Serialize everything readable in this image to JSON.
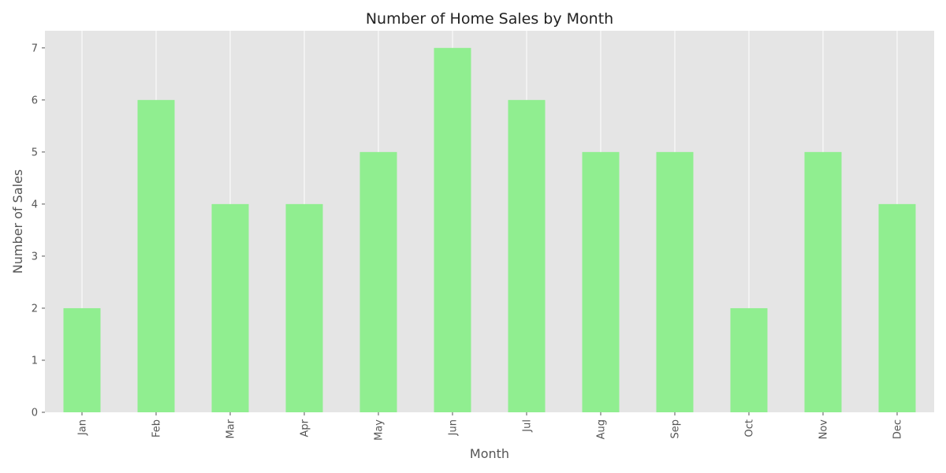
{
  "chart_data": {
    "type": "bar",
    "title": "Number of Home Sales by Month",
    "xlabel": "Month",
    "ylabel": "Number of Sales",
    "categories": [
      "Jan",
      "Feb",
      "Mar",
      "Apr",
      "May",
      "Jun",
      "Jul",
      "Aug",
      "Sep",
      "Oct",
      "Nov",
      "Dec"
    ],
    "values": [
      2,
      6,
      4,
      4,
      5,
      7,
      6,
      5,
      5,
      2,
      5,
      4
    ],
    "ylim": [
      0,
      7.33
    ],
    "yticks": [
      "0",
      "1",
      "2",
      "3",
      "4",
      "5",
      "6",
      "7"
    ],
    "grid": true,
    "legend": "none",
    "colors": {
      "bar": "#90ee90",
      "plot_background": "#e5e5e5",
      "grid": "#ffffff",
      "tick_text": "#555555",
      "title_text": "#222222"
    }
  }
}
